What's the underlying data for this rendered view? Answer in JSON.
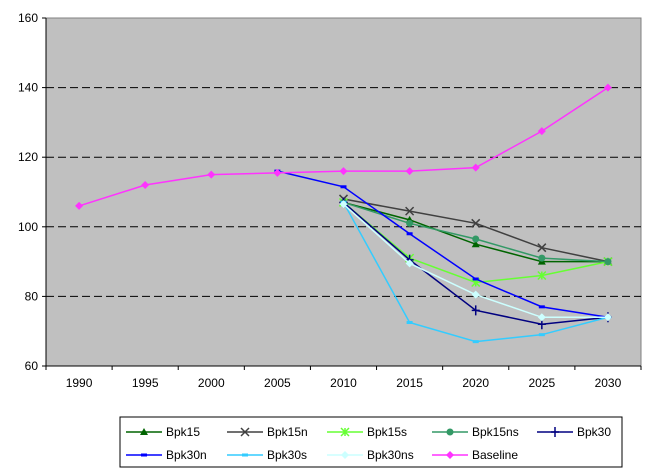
{
  "chart_data": {
    "type": "line",
    "x": [
      "1990",
      "1995",
      "2000",
      "2005",
      "2010",
      "2015",
      "2020",
      "2025",
      "2030"
    ],
    "ylim": [
      60,
      160
    ],
    "yticks": [
      60,
      80,
      100,
      120,
      140,
      160
    ],
    "grid": "dashed horizontal",
    "plot_background": "#c0c0c0",
    "legend_position": "bottom",
    "series": [
      {
        "name": "Bpk15",
        "color": "#006400",
        "marker": "triangle",
        "values": [
          null,
          null,
          null,
          null,
          107,
          102,
          95,
          90,
          90
        ]
      },
      {
        "name": "Bpk15n",
        "color": "#404040",
        "marker": "x",
        "values": [
          null,
          null,
          null,
          null,
          108,
          104.5,
          101,
          94,
          90
        ]
      },
      {
        "name": "Bpk15s",
        "color": "#66ff33",
        "marker": "x-star",
        "values": [
          null,
          null,
          null,
          null,
          107,
          91,
          84,
          86,
          90
        ]
      },
      {
        "name": "Bpk15ns",
        "color": "#339966",
        "marker": "circle",
        "values": [
          null,
          null,
          null,
          null,
          107,
          101,
          96.5,
          91,
          90
        ]
      },
      {
        "name": "Bpk30",
        "color": "#000080",
        "marker": "plus",
        "values": [
          null,
          null,
          null,
          null,
          107,
          90.5,
          76,
          72,
          74
        ]
      },
      {
        "name": "Bpk30n",
        "color": "#0000ff",
        "marker": "dash",
        "values": [
          null,
          null,
          null,
          116,
          111.5,
          98,
          85,
          77,
          74
        ]
      },
      {
        "name": "Bpk30s",
        "color": "#33ccff",
        "marker": "dash",
        "values": [
          null,
          null,
          null,
          null,
          107,
          72.5,
          67,
          69,
          74
        ]
      },
      {
        "name": "Bpk30ns",
        "color": "#ccffff",
        "marker": "diamond",
        "values": [
          null,
          null,
          null,
          null,
          106.5,
          89.5,
          80.5,
          74,
          74
        ]
      },
      {
        "name": "Baseline",
        "color": "#ff33ff",
        "marker": "diamond",
        "values": [
          106,
          112,
          115,
          115.5,
          116,
          116,
          117,
          127.5,
          140
        ]
      }
    ]
  }
}
